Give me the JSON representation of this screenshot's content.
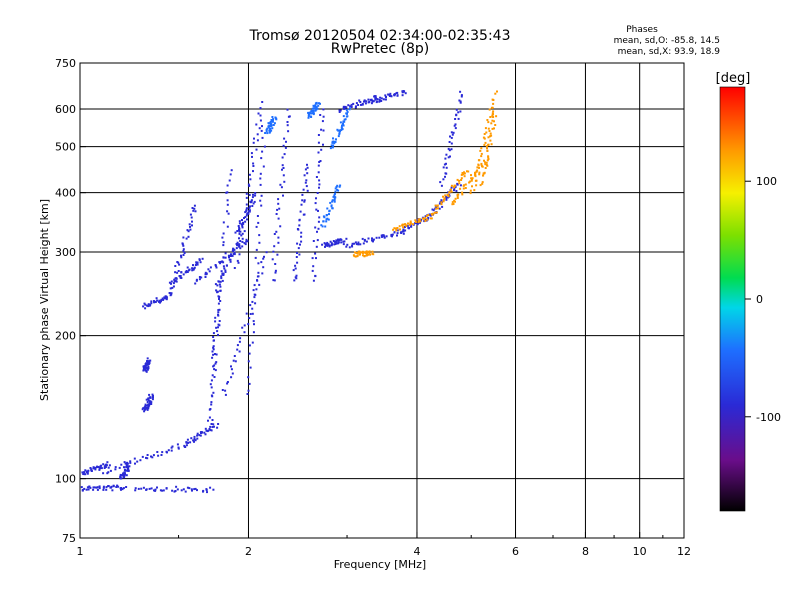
{
  "chart_data": {
    "type": "scatter",
    "title": "Tromsø 20120504 02:34:00-02:35:43",
    "subtitle": "RwPretec (8p)",
    "xlabel": "Frequency [MHz]",
    "ylabel": "Stationary phase Virtual Height [km]",
    "x_scale": "log",
    "y_scale": "log",
    "xlim": [
      1,
      12
    ],
    "ylim": [
      75,
      750
    ],
    "x_ticks": [
      1,
      2,
      4,
      6,
      8,
      10,
      12
    ],
    "x_tick_labels": [
      "1",
      "2",
      "4",
      "6",
      "8",
      "10",
      "12"
    ],
    "y_ticks": [
      75,
      100,
      200,
      300,
      400,
      500,
      600,
      750
    ],
    "y_tick_labels": [
      "75",
      "100",
      "200",
      "300",
      "400",
      "500",
      "600",
      "750"
    ],
    "grid_x": [
      2,
      4,
      6,
      8,
      10
    ],
    "grid_y": [
      100,
      200,
      300,
      400,
      500,
      600
    ],
    "stats": {
      "heading": "Phases",
      "line_o": "mean, sd,O: -85.8, 14.5",
      "line_x": "mean, sd,X:  93.9, 18.9"
    },
    "colorbar": {
      "title": "[deg]",
      "range": [
        -180,
        180
      ],
      "ticks": [
        100,
        0,
        -100
      ],
      "tick_labels": [
        "100",
        "0",
        "-100"
      ],
      "colormap": "rainbow (black-purple-blue-cyan-green-yellow-orange-red)"
    },
    "series": [
      {
        "component": "O-mode",
        "phase_deg": -90,
        "segments": [
          {
            "f": [
              1.0,
              1.2
            ],
            "h": [
              96,
              96
            ]
          },
          {
            "f": [
              1.25,
              1.72
            ],
            "h": [
              96,
              95
            ]
          },
          {
            "f": [
              1.0,
              1.12
            ],
            "h": [
              103,
              108
            ]
          },
          {
            "f": [
              1.1,
              1.52
            ],
            "h": [
              104,
              118
            ]
          },
          {
            "f": [
              1.52,
              1.75
            ],
            "h": [
              118,
              130
            ]
          },
          {
            "f": [
              1.7,
              1.76
            ],
            "h": [
              130,
              250
            ]
          },
          {
            "f": [
              1.74,
              1.94
            ],
            "h": [
              250,
              330
            ]
          },
          {
            "f": [
              1.9,
              2.05
            ],
            "h": [
              330,
              400
            ]
          },
          {
            "f": [
              1.45,
              1.65
            ],
            "h": [
              260,
              290
            ]
          },
          {
            "f": [
              1.6,
              2.0
            ],
            "h": [
              260,
              320
            ]
          },
          {
            "f": [
              1.8,
              2.15
            ],
            "h": [
              150,
              300
            ]
          },
          {
            "f": [
              1.72,
              1.85
            ],
            "h": [
              170,
              450
            ]
          },
          {
            "f": [
              1.9,
              2.1
            ],
            "h": [
              280,
              620
            ]
          },
          {
            "f": [
              2.0,
              2.12
            ],
            "h": [
              150,
              560
            ]
          },
          {
            "f": [
              2.2,
              2.35
            ],
            "h": [
              260,
              600
            ]
          },
          {
            "f": [
              2.4,
              2.55
            ],
            "h": [
              260,
              460
            ]
          },
          {
            "f": [
              2.6,
              2.7
            ],
            "h": [
              260,
              600
            ]
          },
          {
            "f": [
              2.7,
              2.95
            ],
            "h": [
              310,
              320
            ]
          },
          {
            "f": [
              2.95,
              3.7
            ],
            "h": [
              310,
              330
            ]
          },
          {
            "f": [
              3.7,
              4.2
            ],
            "h": [
              330,
              360
            ]
          },
          {
            "f": [
              4.2,
              4.75
            ],
            "h": [
              360,
              420
            ]
          },
          {
            "f": [
              4.4,
              4.8
            ],
            "h": [
              420,
              650
            ]
          },
          {
            "f": [
              2.9,
              3.4
            ],
            "h": [
              600,
              640
            ]
          },
          {
            "f": [
              3.3,
              3.8
            ],
            "h": [
              625,
              655
            ]
          },
          {
            "f": [
              1.3,
              1.45
            ],
            "h": [
              232,
              245
            ]
          },
          {
            "f": [
              1.18,
              1.22
            ],
            "h": [
              100,
              108
            ]
          },
          {
            "f": [
              1.3,
              1.34
            ],
            "h": [
              140,
              150
            ]
          },
          {
            "f": [
              1.3,
              1.32
            ],
            "h": [
              170,
              178
            ]
          },
          {
            "f": [
              1.45,
              1.6
            ],
            "h": [
              250,
              380
            ]
          }
        ]
      },
      {
        "component": "O-mode (mixed)",
        "phase_deg": -40,
        "segments": [
          {
            "f": [
              2.7,
              2.9
            ],
            "h": [
              340,
              420
            ]
          },
          {
            "f": [
              2.8,
              3.0
            ],
            "h": [
              500,
              600
            ]
          },
          {
            "f": [
              2.55,
              2.65
            ],
            "h": [
              580,
              620
            ]
          },
          {
            "f": [
              2.15,
              2.22
            ],
            "h": [
              540,
              580
            ]
          }
        ]
      },
      {
        "component": "X-mode",
        "phase_deg": 110,
        "segments": [
          {
            "f": [
              3.6,
              4.25
            ],
            "h": [
              335,
              360
            ]
          },
          {
            "f": [
              4.25,
              4.9
            ],
            "h": [
              365,
              450
            ]
          },
          {
            "f": [
              4.6,
              5.3
            ],
            "h": [
              380,
              470
            ]
          },
          {
            "f": [
              5.0,
              5.5
            ],
            "h": [
              400,
              650
            ]
          },
          {
            "f": [
              5.2,
              5.5
            ],
            "h": [
              420,
              600
            ]
          },
          {
            "f": [
              3.1,
              3.3
            ],
            "h": [
              298,
              300
            ]
          }
        ]
      }
    ]
  }
}
